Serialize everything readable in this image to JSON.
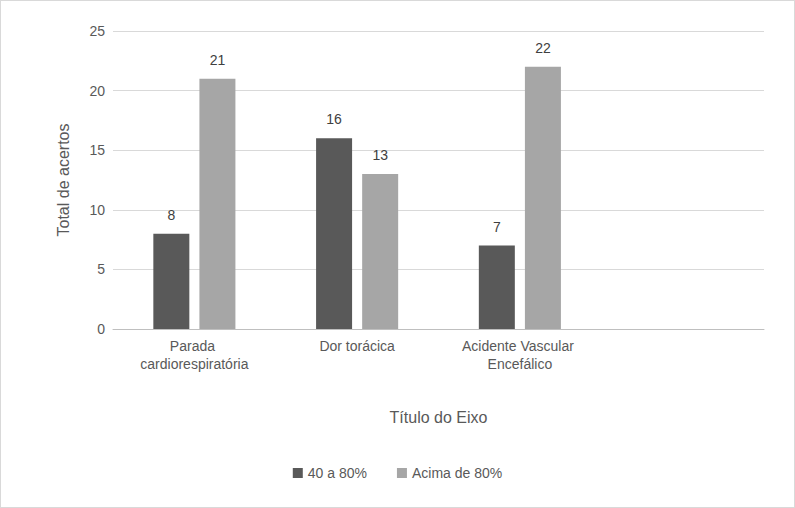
{
  "chart_data": {
    "type": "bar",
    "x_label": "Título do Eixo",
    "y_label": "Total de acertos",
    "categories": [
      "Parada cardiorespiratória",
      "Dor torácica",
      "Acidente Vascular Encefálico",
      null
    ],
    "series": [
      {
        "name": "40 a 80%",
        "color": "#595959",
        "values": [
          8,
          16,
          7,
          null
        ]
      },
      {
        "name": "Acima de 80%",
        "color": "#a6a6a6",
        "values": [
          21,
          13,
          22,
          null
        ]
      }
    ],
    "ylim": [
      0,
      25
    ],
    "yticks": [
      0,
      5,
      10,
      15,
      20,
      25
    ],
    "grid": true,
    "legend": "bottom",
    "data_labels": true
  }
}
